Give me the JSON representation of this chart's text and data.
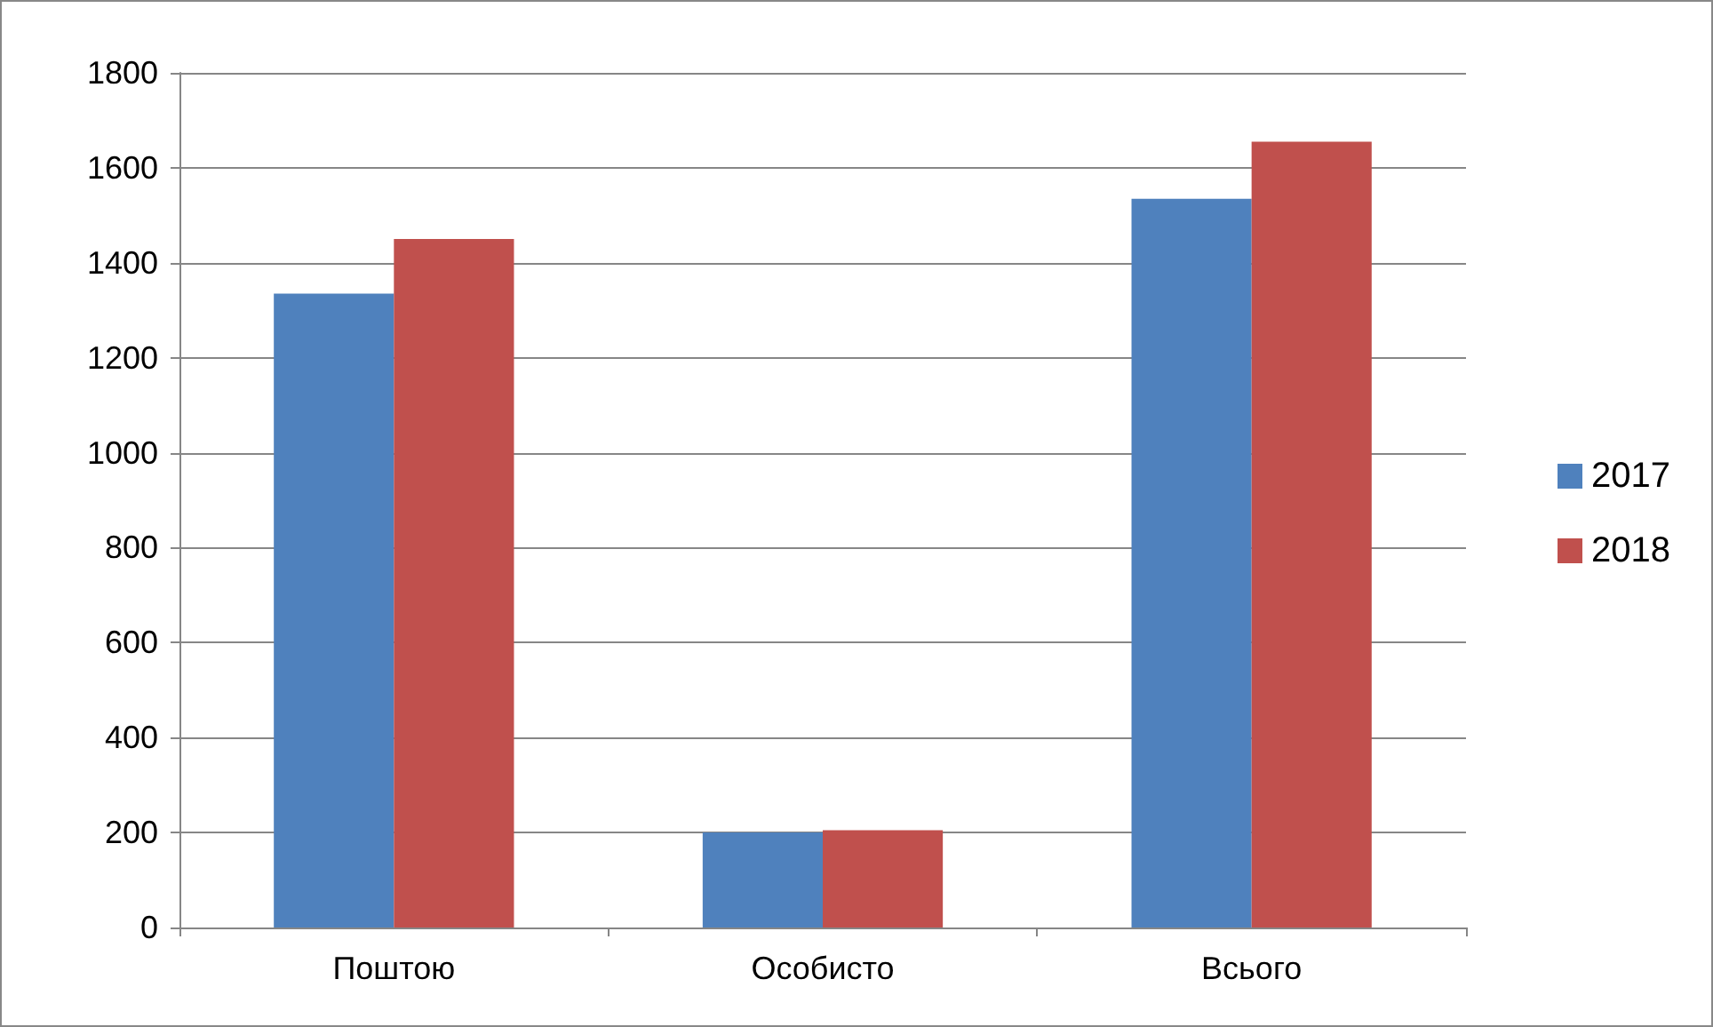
{
  "chart_data": {
    "type": "bar",
    "categories": [
      "Поштою",
      "Особисто",
      "Всього"
    ],
    "series": [
      {
        "name": "2017",
        "color": "#4f81bd",
        "values": [
          1335,
          200,
          1535
        ]
      },
      {
        "name": "2018",
        "color": "#c0504d",
        "values": [
          1450,
          205,
          1655
        ]
      }
    ],
    "ylim": [
      0,
      1800
    ],
    "yticks": [
      0,
      200,
      400,
      600,
      800,
      1000,
      1200,
      1400,
      1600,
      1800
    ],
    "grid": "y",
    "legend": "right"
  }
}
